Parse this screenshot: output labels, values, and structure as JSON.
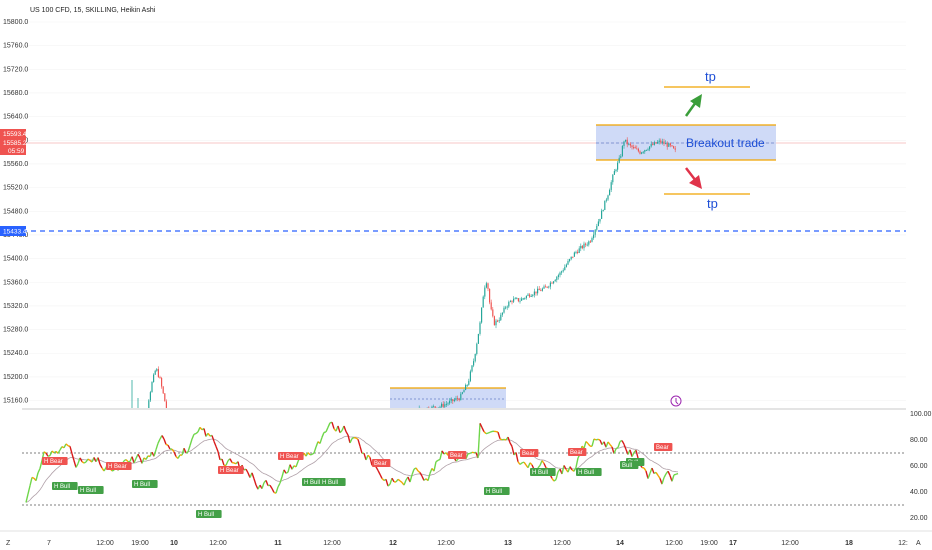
{
  "header": {
    "title": "US 100 CFD, 15, SKILLING, Heikin Ashi"
  },
  "price_axis": {
    "labels": [
      "15800.0",
      "15760.0",
      "15720.0",
      "15680.0",
      "15640.0",
      "15600.0",
      "15560.0",
      "15520.0",
      "15480.0",
      "15440.0",
      "15400.0",
      "15360.0",
      "15320.0",
      "15280.0",
      "15240.0",
      "15200.0",
      "15160.0"
    ],
    "current_price_top": "15593.4",
    "current_price_mid": "15585.2",
    "countdown": "05:59",
    "dashed_level": "15433.4"
  },
  "osc_axis": {
    "labels": [
      "100.00",
      "80.00",
      "60.00",
      "40.00",
      "20.00"
    ]
  },
  "time_axis": {
    "labels": [
      "7",
      "12:00",
      "19:00",
      "10",
      "12:00",
      "11",
      "12:00",
      "12",
      "12:00",
      "13",
      "12:00",
      "14",
      "12:00",
      "19:00",
      "17",
      "12:00",
      "18",
      "12:"
    ],
    "bold": [
      false,
      false,
      false,
      true,
      false,
      true,
      false,
      true,
      false,
      true,
      false,
      true,
      false,
      false,
      true,
      false,
      true,
      false
    ]
  },
  "annotations": {
    "tp_top": "tp",
    "tp_bottom": "tp",
    "breakout": "Breakout trade"
  },
  "osc_badges": [
    {
      "label": "H Bear",
      "type": "bear"
    },
    {
      "label": "H Bear",
      "type": "bear"
    },
    {
      "label": "H Bear",
      "type": "bear"
    },
    {
      "label": "H Bear",
      "type": "bear"
    },
    {
      "label": "Bear",
      "type": "bear"
    },
    {
      "label": "Bear",
      "type": "bear"
    },
    {
      "label": "Bear",
      "type": "bear"
    },
    {
      "label": "Bear",
      "type": "bear"
    },
    {
      "label": "Bear",
      "type": "bear"
    },
    {
      "label": "H Bull",
      "type": "bull"
    },
    {
      "label": "H Bull",
      "type": "bull"
    },
    {
      "label": "H Bull",
      "type": "bull"
    },
    {
      "label": "H Bull",
      "type": "bull"
    },
    {
      "label": "H Bull",
      "type": "bull"
    },
    {
      "label": "H Bull",
      "type": "bull"
    },
    {
      "label": "H Bull",
      "type": "bull"
    },
    {
      "label": "H Bull",
      "type": "bull"
    },
    {
      "label": "H Bull",
      "type": "bull"
    },
    {
      "label": "Bull",
      "type": "bull"
    },
    {
      "label": "Bull",
      "type": "bull"
    }
  ],
  "corner_labels": {
    "left": "Z",
    "right": "A"
  },
  "colors": {
    "up": "#26a69a",
    "down": "#ef5350",
    "box": "#c7d3f6",
    "box_border": "#f0a500",
    "dashed": "#2962ff",
    "tp_line": "#f0a500"
  },
  "chart_data": {
    "type": "candlestick",
    "title": "US 100 CFD, 15, SKILLING, Heikin Ashi",
    "ylim": [
      15120,
      15800
    ],
    "osc_ylim": [
      0,
      100
    ],
    "osc_levels": [
      70,
      30
    ],
    "current_price": 15585.2,
    "dashed_level": 15433.4
  }
}
